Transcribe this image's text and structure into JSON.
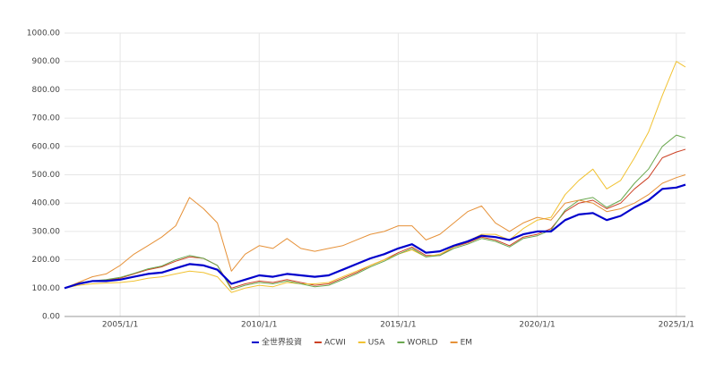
{
  "chart_data": {
    "type": "line",
    "x": [
      "2003/1/1",
      "2003/7/1",
      "2004/1/1",
      "2004/7/1",
      "2005/1/1",
      "2005/7/1",
      "2006/1/1",
      "2006/7/1",
      "2007/1/1",
      "2007/7/1",
      "2008/1/1",
      "2008/7/1",
      "2009/1/1",
      "2009/7/1",
      "2010/1/1",
      "2010/7/1",
      "2011/1/1",
      "2011/7/1",
      "2012/1/1",
      "2012/7/1",
      "2013/1/1",
      "2013/7/1",
      "2014/1/1",
      "2014/7/1",
      "2015/1/1",
      "2015/7/1",
      "2016/1/1",
      "2016/7/1",
      "2017/1/1",
      "2017/7/1",
      "2018/1/1",
      "2018/7/1",
      "2019/1/1",
      "2019/7/1",
      "2020/1/1",
      "2020/7/1",
      "2021/1/1",
      "2021/7/1",
      "2022/1/1",
      "2022/7/1",
      "2023/1/1",
      "2023/7/1",
      "2024/1/1",
      "2024/7/1",
      "2025/1/1",
      "2025/5/1"
    ],
    "series": [
      {
        "name": "全世界投資",
        "color": "#0000cc",
        "width": 2.2,
        "values": [
          100,
          115,
          125,
          125,
          130,
          140,
          150,
          155,
          170,
          185,
          180,
          165,
          115,
          130,
          145,
          140,
          150,
          145,
          140,
          145,
          165,
          185,
          205,
          220,
          240,
          255,
          225,
          230,
          250,
          265,
          285,
          280,
          270,
          290,
          300,
          300,
          340,
          360,
          365,
          340,
          355,
          385,
          410,
          450,
          455,
          465
        ]
      },
      {
        "name": "ACWI",
        "color": "#cc4125",
        "width": 1,
        "values": [
          100,
          118,
          125,
          128,
          135,
          150,
          165,
          175,
          195,
          210,
          205,
          180,
          100,
          115,
          125,
          120,
          130,
          120,
          110,
          115,
          135,
          155,
          180,
          200,
          225,
          245,
          215,
          215,
          245,
          260,
          280,
          270,
          250,
          280,
          290,
          310,
          370,
          400,
          410,
          380,
          400,
          450,
          490,
          560,
          580,
          590
        ]
      },
      {
        "name": "USA",
        "color": "#f1c232",
        "width": 1,
        "values": [
          100,
          110,
          115,
          118,
          120,
          125,
          135,
          140,
          150,
          160,
          155,
          140,
          85,
          100,
          110,
          105,
          120,
          115,
          115,
          120,
          140,
          160,
          180,
          200,
          220,
          235,
          210,
          220,
          245,
          265,
          290,
          290,
          270,
          310,
          340,
          350,
          430,
          480,
          520,
          450,
          480,
          560,
          650,
          780,
          900,
          880
        ]
      },
      {
        "name": "WORLD",
        "color": "#6aa84f",
        "width": 1,
        "values": [
          100,
          118,
          126,
          130,
          138,
          152,
          168,
          178,
          200,
          215,
          205,
          180,
          95,
          110,
          120,
          115,
          125,
          115,
          105,
          110,
          130,
          150,
          175,
          195,
          220,
          240,
          210,
          215,
          240,
          255,
          275,
          265,
          245,
          275,
          285,
          305,
          375,
          410,
          420,
          385,
          410,
          470,
          520,
          600,
          640,
          630
        ]
      },
      {
        "name": "EM",
        "color": "#e69138",
        "width": 1,
        "values": [
          100,
          120,
          140,
          150,
          180,
          220,
          250,
          280,
          320,
          420,
          380,
          330,
          160,
          220,
          250,
          240,
          275,
          240,
          230,
          240,
          250,
          270,
          290,
          300,
          320,
          320,
          270,
          290,
          330,
          370,
          390,
          330,
          300,
          330,
          350,
          340,
          400,
          410,
          400,
          370,
          380,
          400,
          430,
          470,
          490,
          500
        ]
      }
    ],
    "xlim": [
      "2003/1/1",
      "2025/5/1"
    ],
    "xticks": [
      "2005/1/1",
      "2010/1/1",
      "2015/1/1",
      "2020/1/1",
      "2025/1/1"
    ],
    "ylim": [
      0,
      1000
    ],
    "yticks": [
      {
        "value": 0,
        "label": "0.00"
      },
      {
        "value": 100,
        "label": "100.00"
      },
      {
        "value": 200,
        "label": "200.00"
      },
      {
        "value": 300,
        "label": "300.00"
      },
      {
        "value": 400,
        "label": "400.00"
      },
      {
        "value": 500,
        "label": "500.00"
      },
      {
        "value": 600,
        "label": "600.00"
      },
      {
        "value": 700,
        "label": "700.00"
      },
      {
        "value": 800,
        "label": "800.00"
      },
      {
        "value": 900,
        "label": "900.00"
      },
      {
        "value": 1000,
        "label": "1000.00"
      }
    ],
    "grid": true,
    "legend": "bottom"
  }
}
